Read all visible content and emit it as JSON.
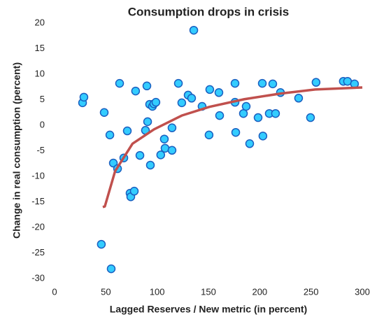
{
  "chart_data": {
    "type": "scatter",
    "title": "Consumption drops in crisis",
    "xlabel": "Lagged  Reserves  / New metric (in percent)",
    "ylabel": "Change in real consumption (percent)",
    "x": [
      27.3,
      28.6,
      48.4,
      53.9,
      57.3,
      61.4,
      63.4,
      67.5,
      70.9,
      73.6,
      74.3,
      77.7,
      79,
      83.2,
      88.6,
      90,
      90.7,
      92.7,
      93.4,
      95.4,
      96.8,
      98.8,
      103.5,
      107.7,
      107,
      114.5,
      114.5,
      120.7,
      124,
      130.2,
      133.6,
      135.7,
      143.8,
      151.3,
      150.6,
      160.2,
      160.9,
      175.9,
      175.9,
      176.6,
      184.1,
      186.8,
      190.2,
      198.4,
      202.5,
      203.1,
      209.3,
      212.7,
      215.4,
      220.2,
      237.9,
      249.5,
      254.9,
      281.5,
      285.6,
      292.4,
      45.6,
      55.2
    ],
    "values": [
      4.4,
      5.5,
      2.5,
      -1.9,
      -7.4,
      -8.5,
      8.2,
      -6.4,
      -1.1,
      -13.3,
      -14,
      -12.9,
      6.7,
      -5.9,
      -1,
      7.7,
      0.7,
      4.1,
      -7.8,
      3.7,
      4.2,
      4.5,
      -5.8,
      -4.5,
      -2.7,
      -0.5,
      -4.9,
      8.2,
      4.4,
      5.9,
      5.3,
      18.6,
      3.7,
      7,
      -1.9,
      6.4,
      1.9,
      8.2,
      4.5,
      -1.4,
      2.3,
      3.7,
      -3.6,
      1.5,
      8.2,
      -2.1,
      2.3,
      8.1,
      2.3,
      6.4,
      5.3,
      1.5,
      8.4,
      8.6,
      8.6,
      8.1,
      -23.3,
      -28.1
    ],
    "color": "#33ccff",
    "edge_color": "#1a5fc0",
    "trend": {
      "x": [
        47,
        49,
        59,
        76,
        97,
        124,
        151,
        185,
        220,
        254,
        300
      ],
      "values": [
        -16,
        -15.9,
        -9,
        -3.6,
        -0.8,
        1.9,
        3.6,
        5.1,
        6.2,
        7,
        7.4
      ],
      "color": "#c0504d"
    },
    "xlim": [
      0,
      300
    ],
    "xticks": [
      0,
      50,
      100,
      150,
      200,
      250,
      300
    ],
    "ylim": [
      -30,
      20
    ],
    "yticks": [
      -30,
      -25,
      -20,
      -15,
      -10,
      -5,
      0,
      5,
      10,
      15,
      20
    ],
    "grid": false
  }
}
